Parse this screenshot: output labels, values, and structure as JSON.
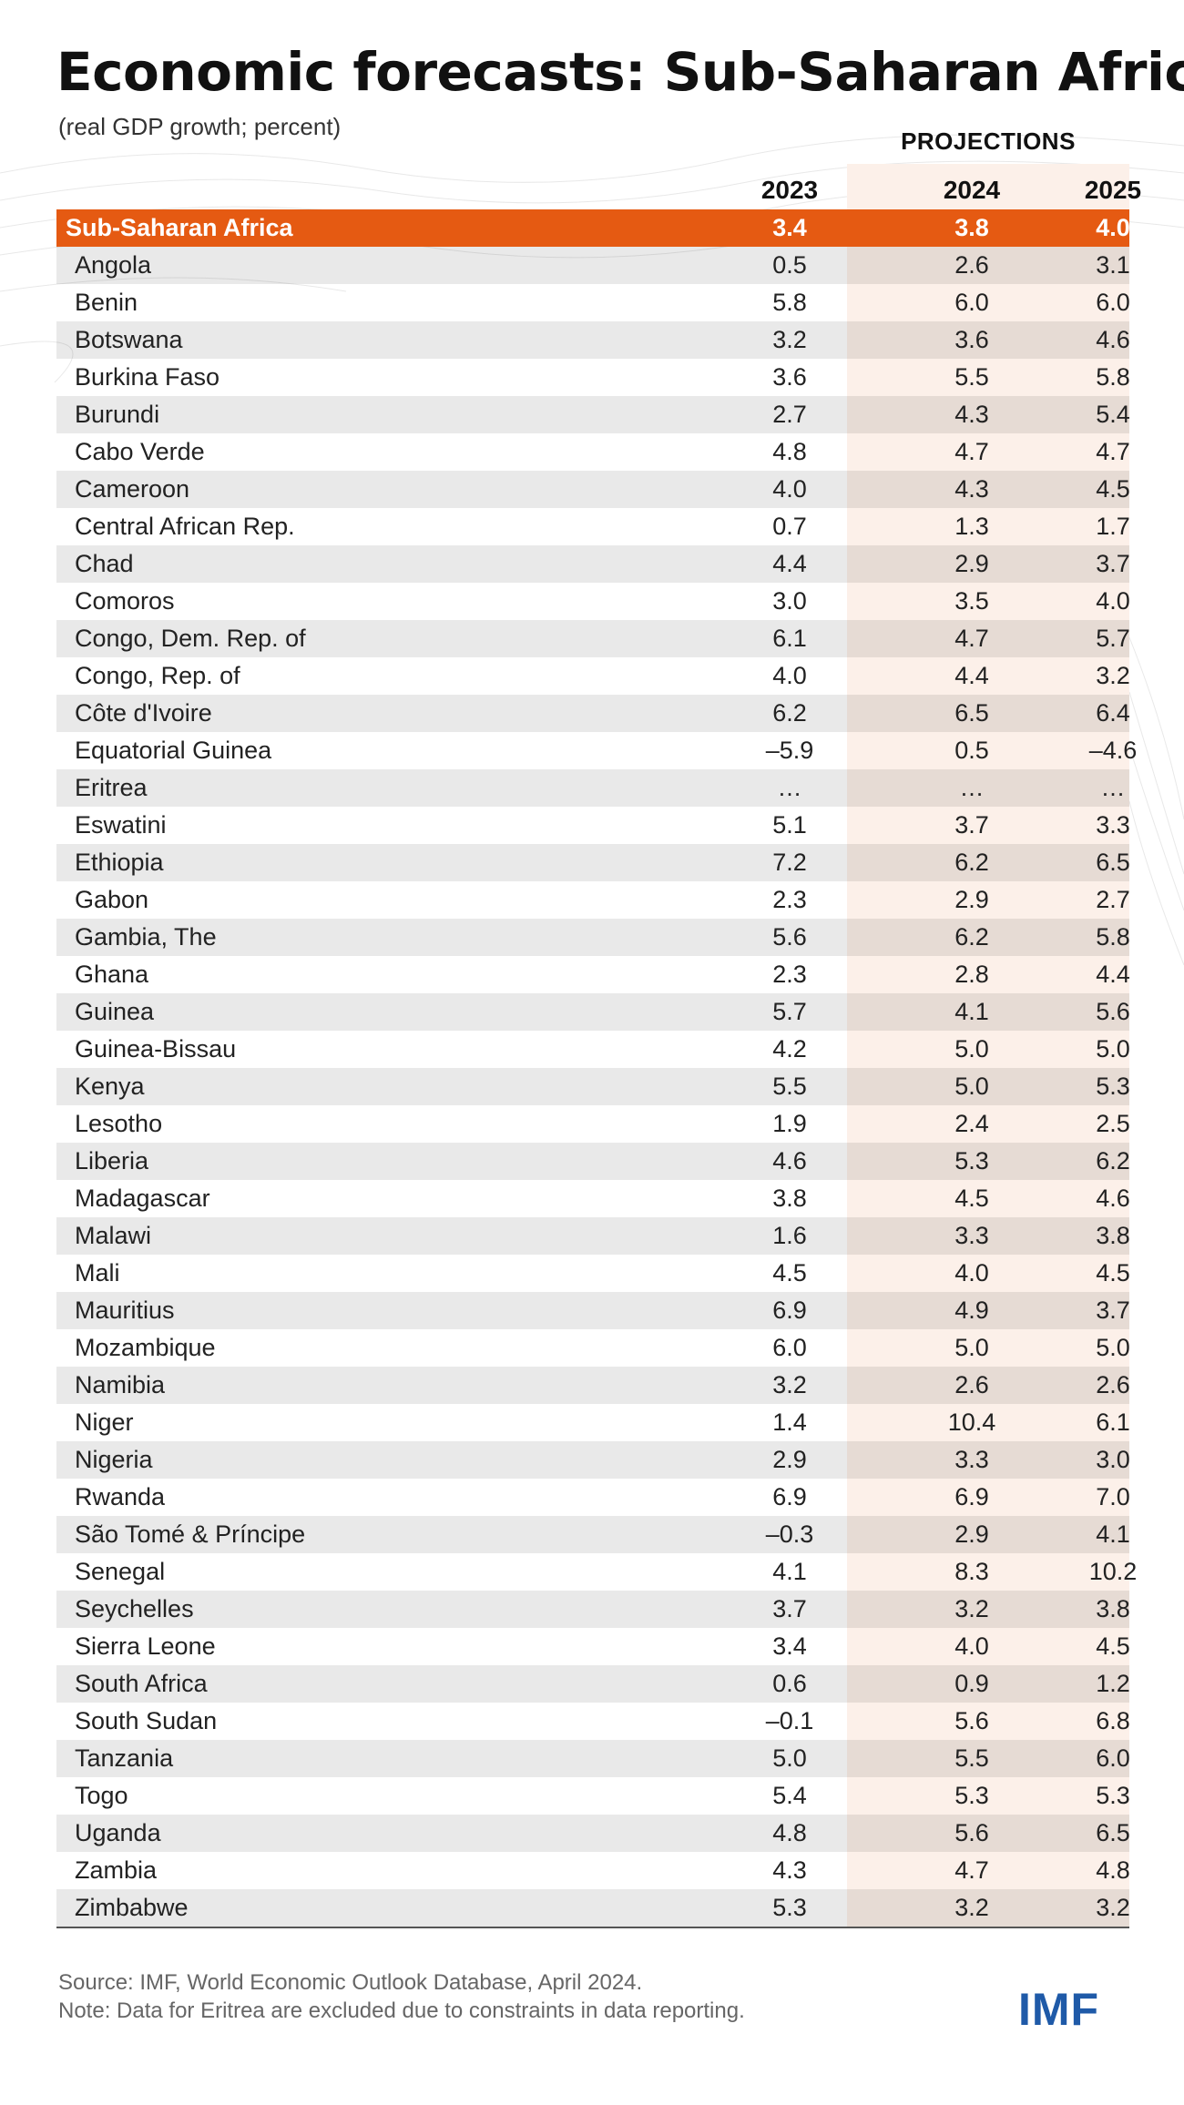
{
  "title": "Economic forecasts: Sub-Saharan Africa",
  "subtitle": "(real GDP growth; percent)",
  "projections_label": "PROJECTIONS",
  "source": "Source: IMF, World Economic Outlook Database, April 2024.",
  "note": "Note: Data for Eritrea are excluded due to constraints in data reporting.",
  "logo": "IMF",
  "colors": {
    "accent": "#e55a12",
    "projection_shade": "#fcf0e9",
    "logo": "#1f5aa8"
  },
  "chart_data": {
    "type": "table",
    "columns": [
      "2023",
      "2024",
      "2025"
    ],
    "projection_columns": [
      "2024",
      "2025"
    ],
    "total_row": {
      "name": "Sub-Saharan Africa",
      "values": [
        "3.4",
        "3.8",
        "4.0"
      ]
    },
    "rows": [
      {
        "name": "Angola",
        "values": [
          "0.5",
          "2.6",
          "3.1"
        ]
      },
      {
        "name": "Benin",
        "values": [
          "5.8",
          "6.0",
          "6.0"
        ]
      },
      {
        "name": "Botswana",
        "values": [
          "3.2",
          "3.6",
          "4.6"
        ]
      },
      {
        "name": "Burkina Faso",
        "values": [
          "3.6",
          "5.5",
          "5.8"
        ]
      },
      {
        "name": "Burundi",
        "values": [
          "2.7",
          "4.3",
          "5.4"
        ]
      },
      {
        "name": "Cabo Verde",
        "values": [
          "4.8",
          "4.7",
          "4.7"
        ]
      },
      {
        "name": "Cameroon",
        "values": [
          "4.0",
          "4.3",
          "4.5"
        ]
      },
      {
        "name": "Central African Rep.",
        "values": [
          "0.7",
          "1.3",
          "1.7"
        ]
      },
      {
        "name": "Chad",
        "values": [
          "4.4",
          "2.9",
          "3.7"
        ]
      },
      {
        "name": "Comoros",
        "values": [
          "3.0",
          "3.5",
          "4.0"
        ]
      },
      {
        "name": "Congo, Dem. Rep. of",
        "values": [
          "6.1",
          "4.7",
          "5.7"
        ]
      },
      {
        "name": "Congo, Rep. of",
        "values": [
          "4.0",
          "4.4",
          "3.2"
        ]
      },
      {
        "name": "Côte d'Ivoire",
        "values": [
          "6.2",
          "6.5",
          "6.4"
        ]
      },
      {
        "name": "Equatorial Guinea",
        "values": [
          "–5.9",
          "0.5",
          "–4.6"
        ]
      },
      {
        "name": "Eritrea",
        "values": [
          "…",
          "…",
          "…"
        ]
      },
      {
        "name": "Eswatini",
        "values": [
          "5.1",
          "3.7",
          "3.3"
        ]
      },
      {
        "name": "Ethiopia",
        "values": [
          "7.2",
          "6.2",
          "6.5"
        ]
      },
      {
        "name": "Gabon",
        "values": [
          "2.3",
          "2.9",
          "2.7"
        ]
      },
      {
        "name": "Gambia, The",
        "values": [
          "5.6",
          "6.2",
          "5.8"
        ]
      },
      {
        "name": "Ghana",
        "values": [
          "2.3",
          "2.8",
          "4.4"
        ]
      },
      {
        "name": "Guinea",
        "values": [
          "5.7",
          "4.1",
          "5.6"
        ]
      },
      {
        "name": "Guinea-Bissau",
        "values": [
          "4.2",
          "5.0",
          "5.0"
        ]
      },
      {
        "name": "Kenya",
        "values": [
          "5.5",
          "5.0",
          "5.3"
        ]
      },
      {
        "name": "Lesotho",
        "values": [
          "1.9",
          "2.4",
          "2.5"
        ]
      },
      {
        "name": "Liberia",
        "values": [
          "4.6",
          "5.3",
          "6.2"
        ]
      },
      {
        "name": "Madagascar",
        "values": [
          "3.8",
          "4.5",
          "4.6"
        ]
      },
      {
        "name": "Malawi",
        "values": [
          "1.6",
          "3.3",
          "3.8"
        ]
      },
      {
        "name": "Mali",
        "values": [
          "4.5",
          "4.0",
          "4.5"
        ]
      },
      {
        "name": "Mauritius",
        "values": [
          "6.9",
          "4.9",
          "3.7"
        ]
      },
      {
        "name": "Mozambique",
        "values": [
          "6.0",
          "5.0",
          "5.0"
        ]
      },
      {
        "name": "Namibia",
        "values": [
          "3.2",
          "2.6",
          "2.6"
        ]
      },
      {
        "name": "Niger",
        "values": [
          "1.4",
          "10.4",
          "6.1"
        ]
      },
      {
        "name": "Nigeria",
        "values": [
          "2.9",
          "3.3",
          "3.0"
        ]
      },
      {
        "name": "Rwanda",
        "values": [
          "6.9",
          "6.9",
          "7.0"
        ]
      },
      {
        "name": "São Tomé & Príncipe",
        "values": [
          "–0.3",
          "2.9",
          "4.1"
        ]
      },
      {
        "name": "Senegal",
        "values": [
          "4.1",
          "8.3",
          "10.2"
        ]
      },
      {
        "name": "Seychelles",
        "values": [
          "3.7",
          "3.2",
          "3.8"
        ]
      },
      {
        "name": "Sierra Leone",
        "values": [
          "3.4",
          "4.0",
          "4.5"
        ]
      },
      {
        "name": "South Africa",
        "values": [
          "0.6",
          "0.9",
          "1.2"
        ]
      },
      {
        "name": "South Sudan",
        "values": [
          "–0.1",
          "5.6",
          "6.8"
        ]
      },
      {
        "name": "Tanzania",
        "values": [
          "5.0",
          "5.5",
          "6.0"
        ]
      },
      {
        "name": "Togo",
        "values": [
          "5.4",
          "5.3",
          "5.3"
        ]
      },
      {
        "name": "Uganda",
        "values": [
          "4.8",
          "5.6",
          "6.5"
        ]
      },
      {
        "name": "Zambia",
        "values": [
          "4.3",
          "4.7",
          "4.8"
        ]
      },
      {
        "name": "Zimbabwe",
        "values": [
          "5.3",
          "3.2",
          "3.2"
        ]
      }
    ]
  }
}
